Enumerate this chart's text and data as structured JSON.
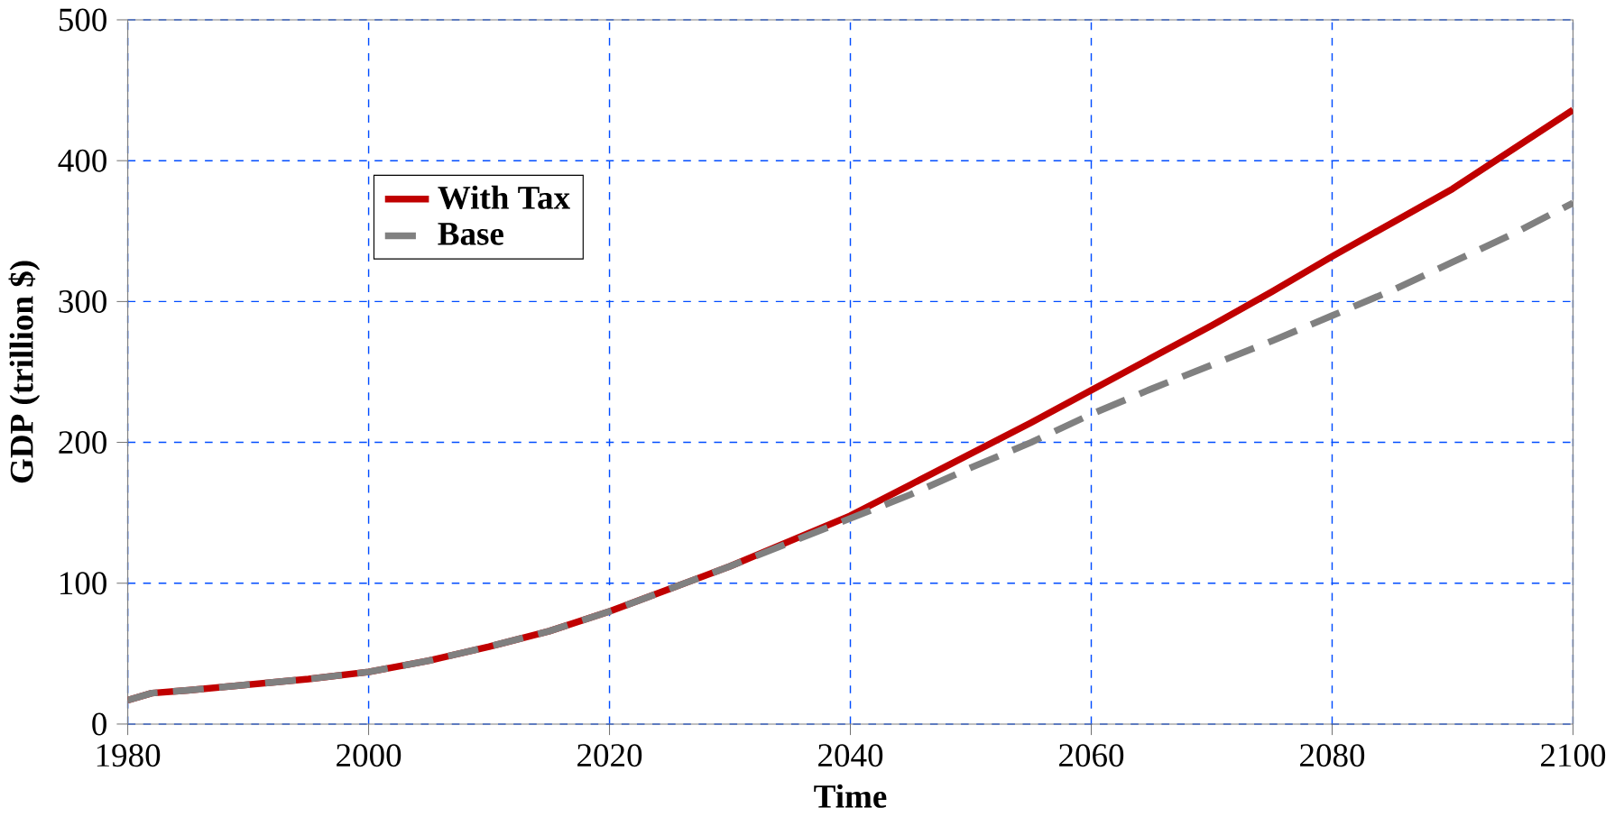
{
  "chart_data": {
    "type": "line",
    "xlabel": "Time",
    "ylabel": "GDP (trillion $)",
    "xlim": [
      1980,
      2100
    ],
    "ylim": [
      0,
      500
    ],
    "xticks": [
      1980,
      2000,
      2020,
      2040,
      2060,
      2080,
      2100
    ],
    "yticks": [
      0,
      100,
      200,
      300,
      400,
      500
    ],
    "grid": true,
    "legend": "top left",
    "marker": "none",
    "x": [
      1980,
      1982,
      1985,
      1990,
      1995,
      2000,
      2005,
      2010,
      2015,
      2020,
      2025,
      2030,
      2035,
      2040,
      2045,
      2050,
      2055,
      2060,
      2065,
      2070,
      2075,
      2080,
      2085,
      2090,
      2095,
      2100
    ],
    "series": [
      {
        "name": "With Tax",
        "color": "#c00000",
        "line_style": "solid",
        "values": [
          17,
          22,
          24,
          28,
          32,
          37,
          45,
          55,
          66,
          80,
          96,
          112,
          130,
          148,
          170,
          192,
          214,
          237,
          260,
          283,
          307,
          332,
          356,
          380,
          408,
          436
        ]
      },
      {
        "name": "Base",
        "color": "#808080",
        "line_style": "dashed",
        "values": [
          17,
          22,
          24,
          28,
          32,
          37,
          45,
          55,
          66,
          80,
          96,
          112,
          129,
          146,
          163,
          182,
          200,
          220,
          238,
          255,
          272,
          290,
          308,
          328,
          348,
          370
        ]
      }
    ]
  }
}
